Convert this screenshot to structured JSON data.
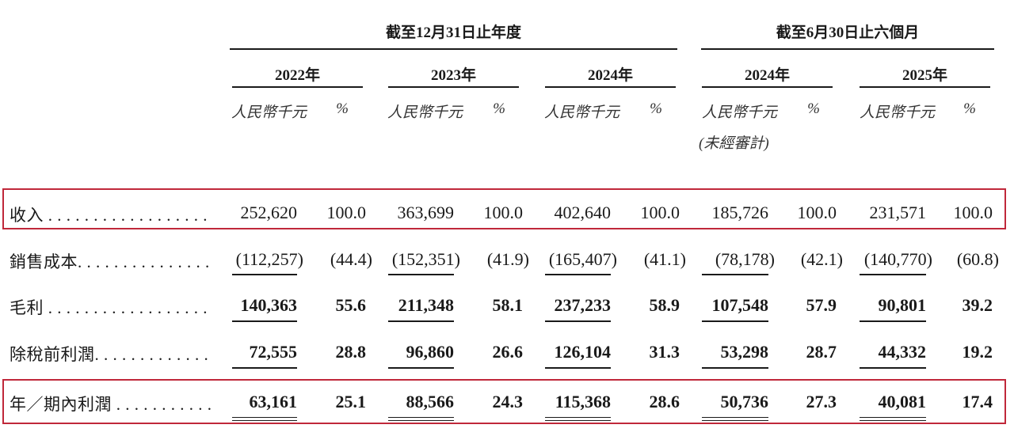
{
  "group_headers": {
    "annual": "截至12月31日止年度",
    "interim": "截至6月30日止六個月"
  },
  "year_headers": [
    "2022年",
    "2023年",
    "2024年",
    "2024年",
    "2025年"
  ],
  "units": {
    "amount": "人民幣千元",
    "pct": "%",
    "unaudited": "(未經審計)"
  },
  "rows": [
    {
      "label": "收入 . . . . . . . . . . . . . . . . . .",
      "values": [
        "252,620",
        "100.0",
        "363,699",
        "100.0",
        "402,640",
        "100.0",
        "185,726",
        "100.0",
        "231,571",
        "100.0"
      ]
    },
    {
      "label": "銷售成本. . . . . . . . . . . . . . .",
      "values": [
        "(112,257)",
        "(44.4)",
        "(152,351)",
        "(41.9)",
        "(165,407)",
        "(41.1)",
        "(78,178)",
        "(42.1)",
        "(140,770)",
        "(60.8)"
      ]
    },
    {
      "label": "毛利 . . . . . . . . . . . . . . . . . .",
      "values": [
        "140,363",
        "55.6",
        "211,348",
        "58.1",
        "237,233",
        "58.9",
        "107,548",
        "57.9",
        "90,801",
        "39.2"
      ]
    },
    {
      "label": "除稅前利潤. . . . . . . . . . . . .",
      "values": [
        "72,555",
        "28.8",
        "96,860",
        "26.6",
        "126,104",
        "31.3",
        "53,298",
        "28.7",
        "44,332",
        "19.2"
      ]
    },
    {
      "label": "年／期內利潤 . . . . . . . . . . .",
      "values": [
        "63,161",
        "25.1",
        "88,566",
        "24.3",
        "115,368",
        "28.6",
        "50,736",
        "27.3",
        "40,081",
        "17.4"
      ]
    }
  ],
  "highlight_color": "#c0283a"
}
